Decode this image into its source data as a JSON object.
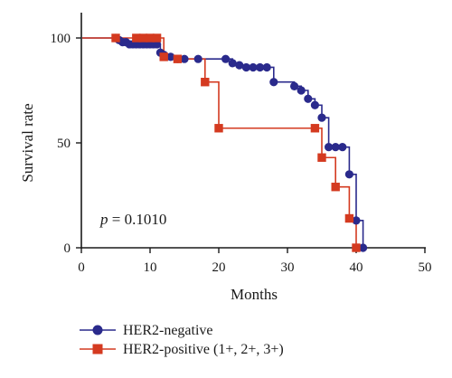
{
  "chart_data": {
    "type": "line",
    "step": true,
    "xlabel": "Months",
    "ylabel": "Survival rate",
    "xlim": [
      0,
      50
    ],
    "ylim": [
      0,
      100
    ],
    "xticks": [
      0,
      10,
      20,
      30,
      40,
      50
    ],
    "yticks": [
      0,
      50,
      100
    ],
    "grid": false,
    "legend_position": "bottom-left",
    "annotation": {
      "italic": "p",
      "rest": " = 0.1010"
    },
    "series": [
      {
        "name": "HER2-negative",
        "color": "#2a2a8c",
        "marker": "circle",
        "x": [
          5,
          5.5,
          6,
          6.5,
          7,
          7.5,
          8,
          8.5,
          9,
          9.5,
          10,
          10.5,
          11,
          11.5,
          12,
          13,
          14,
          15,
          17,
          21,
          22,
          23,
          24,
          25,
          26,
          27,
          28,
          31,
          32,
          33,
          34,
          35,
          36,
          37,
          38,
          39,
          40,
          41
        ],
        "y": [
          100,
          99,
          98,
          98,
          97,
          97,
          97,
          97,
          97,
          97,
          97,
          97,
          97,
          93,
          92,
          91,
          90,
          90,
          90,
          90,
          88,
          87,
          86,
          86,
          86,
          86,
          79,
          77,
          75,
          71,
          68,
          62,
          48,
          48,
          48,
          35,
          13,
          0
        ]
      },
      {
        "name": "HER2-positive (1+, 2+, 3+)",
        "color": "#d43a20",
        "marker": "square",
        "x": [
          5,
          8,
          9,
          10,
          11,
          12,
          14,
          18,
          20,
          34,
          35,
          37,
          39,
          40
        ],
        "y": [
          100,
          100,
          100,
          100,
          100,
          91,
          90,
          79,
          57,
          57,
          43,
          29,
          14,
          0
        ]
      }
    ]
  }
}
